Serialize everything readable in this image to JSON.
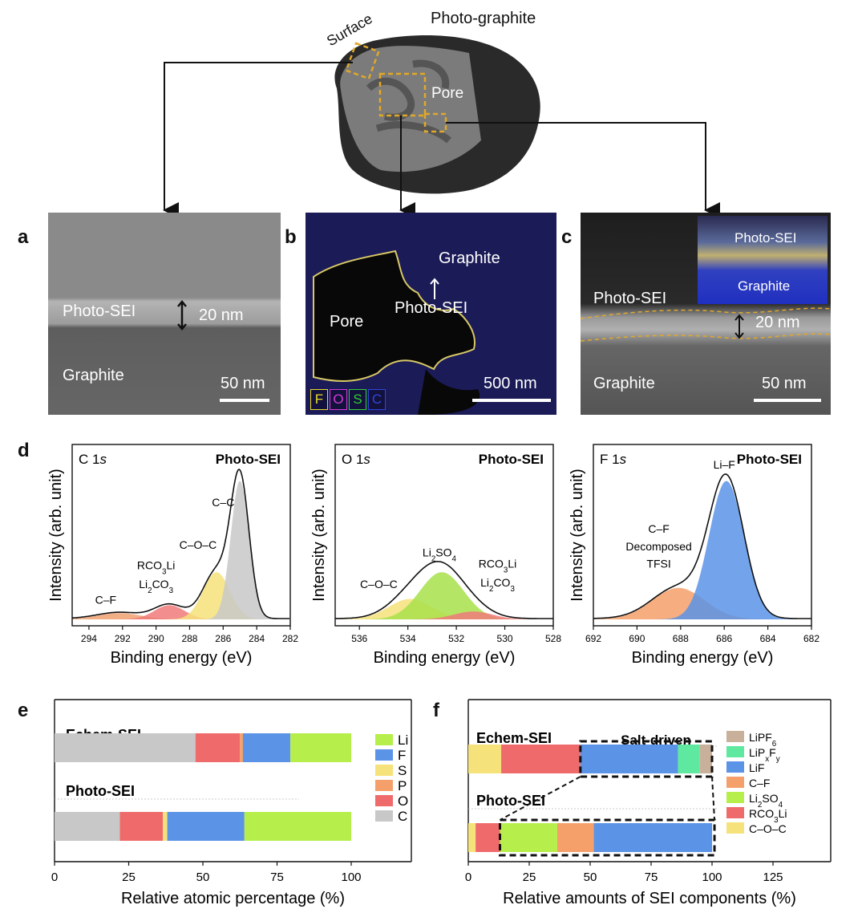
{
  "colors": {
    "tem_bg": "#6d6d6d",
    "map_bg": "#1a1a55",
    "haadf_bg": "#3a3a3a",
    "yellow_box": "#e0a82a"
  },
  "top": {
    "title": "Photo-graphite",
    "surface_label": "Surface",
    "pore_label": "Pore"
  },
  "panels": {
    "a": {
      "letter": "a",
      "sei": "Photo-SEI",
      "thickness": "20 nm",
      "base": "Graphite",
      "scale": "50 nm"
    },
    "b": {
      "letter": "b",
      "graphite": "Graphite",
      "sei": "Photo-SEI",
      "pore": "Pore",
      "scale": "500 nm",
      "elements": [
        {
          "label": "F",
          "color": "#e8d92a"
        },
        {
          "label": "O",
          "color": "#d63bd6"
        },
        {
          "label": "S",
          "color": "#33cc33"
        },
        {
          "label": "C",
          "color": "#3344dd"
        }
      ]
    },
    "c": {
      "letter": "c",
      "inset_sei": "Photo-SEI",
      "inset_graphite": "Graphite",
      "sei": "Photo-SEI",
      "thickness": "20 nm",
      "base": "Graphite",
      "scale": "50 nm"
    }
  },
  "xps": {
    "letter": "d",
    "ylabel": "Intensity (arb. unit)",
    "xlabel": "Binding energy (eV)",
    "tag": "Photo-SEI",
    "plots": [
      {
        "core": "C 1",
        "orb": "s",
        "xmin": 282,
        "xmax": 295,
        "ticks": [
          294,
          292,
          290,
          288,
          286,
          284,
          282
        ],
        "peaks": [
          {
            "c": 292.2,
            "s": 1.3,
            "a": 0.04,
            "color": "#f0a070"
          },
          {
            "c": 289.2,
            "s": 0.9,
            "a": 0.09,
            "color": "#f07a7a"
          },
          {
            "c": 286.4,
            "s": 0.8,
            "a": 0.3,
            "color": "#f6e27a"
          },
          {
            "c": 285.0,
            "s": 0.55,
            "a": 0.88,
            "color": "#c8c8c8"
          }
        ],
        "labels": [
          {
            "t": "C–C",
            "x": 286.0,
            "y": 0.72
          },
          {
            "t": "C–O–C",
            "x": 287.5,
            "y": 0.45
          },
          {
            "t": "RCO",
            "sub": "3",
            "t2": "Li",
            "x": 290.0,
            "y": 0.32
          },
          {
            "t": "Li",
            "sub": "2",
            "t2": "CO",
            "sub2": "3",
            "x": 290.0,
            "y": 0.2
          },
          {
            "t": "C–F",
            "x": 293.0,
            "y": 0.1
          }
        ]
      },
      {
        "core": "O 1",
        "orb": "s",
        "xmin": 528,
        "xmax": 537,
        "ticks": [
          536,
          534,
          532,
          530,
          528
        ],
        "peaks": [
          {
            "c": 533.9,
            "s": 0.9,
            "a": 0.13,
            "color": "#f6e27a"
          },
          {
            "c": 532.6,
            "s": 0.9,
            "a": 0.3,
            "color": "#a8e04a"
          },
          {
            "c": 531.3,
            "s": 0.8,
            "a": 0.05,
            "color": "#f07a7a"
          }
        ],
        "labels": [
          {
            "t": "Li",
            "sub": "2",
            "t2": "SO",
            "sub2": "4",
            "x": 532.7,
            "y": 0.4
          },
          {
            "t": "C–O–C",
            "x": 535.2,
            "y": 0.2
          },
          {
            "t": "RCO",
            "sub": "3",
            "t2": "Li",
            "x": 530.3,
            "y": 0.33
          },
          {
            "t": "Li",
            "sub": "2",
            "t2": "CO",
            "sub2": "3",
            "x": 530.3,
            "y": 0.21
          }
        ]
      },
      {
        "core": "F 1",
        "orb": "s",
        "xmin": 682,
        "xmax": 692,
        "ticks": [
          692,
          690,
          688,
          686,
          684,
          682
        ],
        "peaks": [
          {
            "c": 688.1,
            "s": 1.2,
            "a": 0.2,
            "color": "#f5a06a"
          },
          {
            "c": 685.9,
            "s": 0.8,
            "a": 0.88,
            "color": "#5b93e6"
          }
        ],
        "labels": [
          {
            "t": "Li–F",
            "x": 686.0,
            "y": 0.96
          },
          {
            "t": "C–F",
            "x": 689.0,
            "y": 0.55
          },
          {
            "t": "Decomposed",
            "x": 689.0,
            "y": 0.44
          },
          {
            "t": "TFSI",
            "x": 689.0,
            "y": 0.33
          }
        ]
      }
    ]
  },
  "chart_data": [
    {
      "type": "bar",
      "panel": "e",
      "orientation": "horizontal",
      "stacked": true,
      "xlabel": "Relative atomic percentage (%)",
      "xlim": [
        0,
        125
      ],
      "xticks": [
        0,
        25,
        50,
        75,
        100
      ],
      "categories": [
        "Echem-SEI",
        "Photo-SEI"
      ],
      "series": [
        {
          "name": "C",
          "color": "#c8c8c8",
          "values": [
            47.5,
            22
          ]
        },
        {
          "name": "O",
          "color": "#ef6b6b",
          "values": [
            15,
            14.5
          ]
        },
        {
          "name": "P",
          "color": "#f5a06a",
          "values": [
            1,
            0
          ]
        },
        {
          "name": "S",
          "color": "#f6e27a",
          "values": [
            0,
            1.5
          ]
        },
        {
          "name": "F",
          "color": "#5b93e6",
          "values": [
            16,
            26
          ]
        },
        {
          "name": "Li",
          "color": "#b6ef4c",
          "values": [
            20.5,
            36
          ]
        }
      ],
      "legend_order": [
        "Li",
        "F",
        "S",
        "P",
        "O",
        "C"
      ]
    },
    {
      "type": "bar",
      "panel": "f",
      "orientation": "horizontal",
      "stacked": true,
      "xlabel": "Relative amounts of SEI components (%)",
      "xlim": [
        0,
        145
      ],
      "xticks": [
        0,
        25,
        50,
        75,
        100,
        125
      ],
      "annotation": "Salt-driven",
      "categories": [
        "Echem-SEI",
        "Photo-SEI"
      ],
      "series": [
        {
          "name": "C–O–C",
          "color": "#f6e27a",
          "values": [
            13.5,
            3
          ]
        },
        {
          "name": "RCO₃Li",
          "color": "#ef6b6b",
          "values": [
            32.5,
            10
          ]
        },
        {
          "name": "Li₂SO₄",
          "color": "#b6ef4c",
          "values": [
            0,
            23.5
          ]
        },
        {
          "name": "C–F",
          "color": "#f5a06a",
          "values": [
            0,
            15
          ]
        },
        {
          "name": "LiF",
          "color": "#5b93e6",
          "values": [
            40,
            48.5
          ]
        },
        {
          "name": "LiPₓFᵧ",
          "color": "#5ee8a0",
          "values": [
            9,
            0
          ]
        },
        {
          "name": "LiPF₆",
          "color": "#c9b09a",
          "values": [
            5,
            0
          ]
        }
      ],
      "legend": [
        {
          "t": "LiPF",
          "sub": "6",
          "color": "#c9b09a"
        },
        {
          "t": "LiP",
          "sub": "x",
          "t2": "F",
          "sub2": "y",
          "color": "#5ee8a0"
        },
        {
          "t": "LiF",
          "color": "#5b93e6"
        },
        {
          "t": "C–F",
          "color": "#f5a06a"
        },
        {
          "t": "Li",
          "sub": "2",
          "t2": "SO",
          "sub2": "4",
          "color": "#b6ef4c"
        },
        {
          "t": "RCO",
          "sub": "3",
          "t2": "Li",
          "color": "#ef6b6b"
        },
        {
          "t": "C–O–C",
          "color": "#f6e27a"
        }
      ]
    }
  ]
}
